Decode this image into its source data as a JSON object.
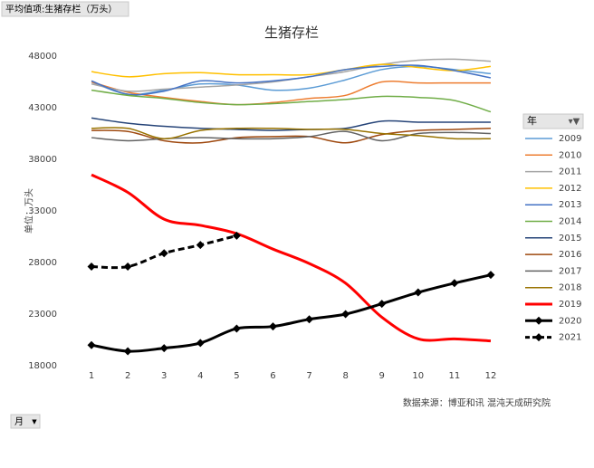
{
  "chart_data": {
    "type": "line",
    "pivot_label": "平均值项:生猪存栏（万头）",
    "title": "生猪存栏",
    "y_label": "单位：万头",
    "source": "数据来源：博亚和讯 混沌天成研究院",
    "x_field": "月",
    "legend_title": "年",
    "legend": "right",
    "categories": [
      "1",
      "2",
      "3",
      "4",
      "5",
      "6",
      "7",
      "8",
      "9",
      "10",
      "11",
      "12"
    ],
    "ylim": [
      18000,
      48000
    ],
    "yticks": [
      18000,
      23000,
      28000,
      33000,
      38000,
      43000,
      48000
    ],
    "series": [
      {
        "name": "2009",
        "color": "#5b9bd5",
        "line_width": 1.5,
        "values": [
          45500,
          44300,
          44700,
          45300,
          45200,
          44700,
          44900,
          45700,
          46700,
          47000,
          46700,
          46300
        ]
      },
      {
        "name": "2010",
        "color": "#ed7d31",
        "line_width": 1.5,
        "values": [
          45500,
          44500,
          44000,
          43600,
          43300,
          43500,
          43900,
          44200,
          45500,
          45400,
          45400,
          45400
        ]
      },
      {
        "name": "2011",
        "color": "#a5a5a5",
        "line_width": 1.5,
        "values": [
          45300,
          44600,
          44800,
          45000,
          45200,
          45500,
          46000,
          46500,
          47200,
          47600,
          47700,
          47500
        ]
      },
      {
        "name": "2012",
        "color": "#ffc000",
        "line_width": 1.5,
        "values": [
          46500,
          46000,
          46300,
          46400,
          46200,
          46200,
          46200,
          46700,
          47200,
          46900,
          46600,
          47000
        ]
      },
      {
        "name": "2013",
        "color": "#4472c4",
        "line_width": 1.5,
        "values": [
          45600,
          44300,
          44600,
          45600,
          45400,
          45600,
          46000,
          46700,
          47000,
          47100,
          46600,
          45900
        ]
      },
      {
        "name": "2014",
        "color": "#70ad47",
        "line_width": 1.5,
        "values": [
          44700,
          44200,
          43900,
          43500,
          43300,
          43400,
          43600,
          43800,
          44100,
          44000,
          43700,
          42600
        ]
      },
      {
        "name": "2015",
        "color": "#264478",
        "line_width": 1.5,
        "values": [
          42000,
          41500,
          41200,
          41000,
          40900,
          40800,
          40900,
          41000,
          41700,
          41600,
          41600,
          41600
        ]
      },
      {
        "name": "2016",
        "color": "#9e480e",
        "line_width": 1.5,
        "values": [
          40800,
          40700,
          39800,
          39600,
          40100,
          40200,
          40200,
          39600,
          40400,
          40800,
          40900,
          41000
        ]
      },
      {
        "name": "2017",
        "color": "#636363",
        "line_width": 1.5,
        "values": [
          40100,
          39800,
          40000,
          40100,
          40000,
          40000,
          40200,
          40700,
          39800,
          40500,
          40600,
          40500
        ]
      },
      {
        "name": "2018",
        "color": "#997300",
        "line_width": 1.5,
        "values": [
          41000,
          41000,
          40000,
          40800,
          41000,
          41000,
          40900,
          40900,
          40500,
          40300,
          40000,
          40000
        ]
      },
      {
        "name": "2019",
        "color": "#ff0000",
        "line_width": 3,
        "values": [
          36500,
          34800,
          32200,
          31600,
          30800,
          29300,
          27900,
          26000,
          22700,
          20600,
          20600,
          20400
        ]
      },
      {
        "name": "2020",
        "color": "#000000",
        "line_width": 3,
        "marker": "diamond",
        "values": [
          20000,
          19400,
          19700,
          20200,
          21600,
          21800,
          22500,
          23000,
          24000,
          25100,
          26000,
          26800
        ]
      },
      {
        "name": "2021",
        "color": "#000000",
        "line_width": 3,
        "marker": "diamond",
        "dash": true,
        "values": [
          27600,
          27600,
          28900,
          29700,
          30600,
          null,
          null,
          null,
          null,
          null,
          null,
          null
        ]
      }
    ]
  }
}
